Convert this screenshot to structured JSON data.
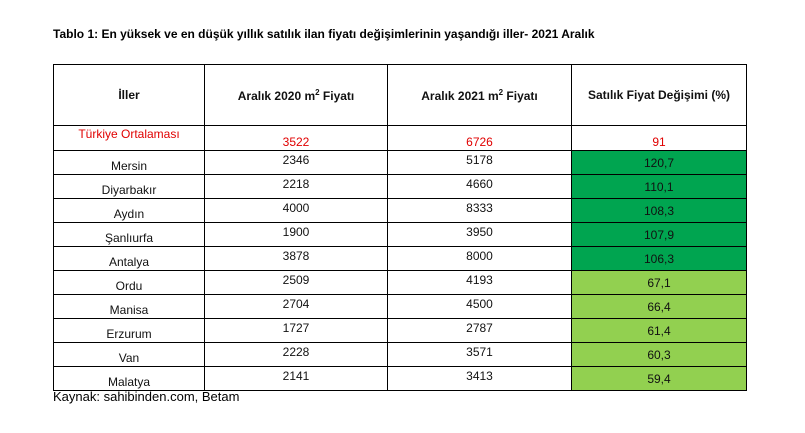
{
  "title": "Tablo 1: En yüksek ve en düşük yıllık satılık ilan fiyatı değişimlerinin yaşandığı iller- 2021 Aralık",
  "headers": {
    "city": "İller",
    "price2020": "Aralık 2020 m",
    "price2021": "Aralık 2021 m",
    "price_suffix": " Fiyatı",
    "sup": "2",
    "change": "Satılık Fiyat Değişimi (%)"
  },
  "average": {
    "city": "Türkiye Ortalaması",
    "p2020": "3522",
    "p2021": "6726",
    "change": "91"
  },
  "rows": [
    {
      "city": "Mersin",
      "p2020": "2346",
      "p2021": "5178",
      "change": "120,7"
    },
    {
      "city": "Diyarbakır",
      "p2020": "2218",
      "p2021": "4660",
      "change": "110,1"
    },
    {
      "city": "Aydın",
      "p2020": "4000",
      "p2021": "8333",
      "change": "108,3"
    },
    {
      "city": "Şanlıurfa",
      "p2020": "1900",
      "p2021": "3950",
      "change": "107,9"
    },
    {
      "city": "Antalya",
      "p2020": "3878",
      "p2021": "8000",
      "change": "106,3"
    },
    {
      "city": "Ordu",
      "p2020": "2509",
      "p2021": "4193",
      "change": "67,1"
    },
    {
      "city": "Manisa",
      "p2020": "2704",
      "p2021": "4500",
      "change": "66,4"
    },
    {
      "city": "Erzurum",
      "p2020": "1727",
      "p2021": "2787",
      "change": "61,4"
    },
    {
      "city": "Van",
      "p2020": "2228",
      "p2021": "3571",
      "change": "60,3"
    },
    {
      "city": "Malatya",
      "p2020": "2141",
      "p2021": "3413",
      "change": "59,4"
    }
  ],
  "colors": {
    "highest": "#00a550",
    "lowest": "#92d050",
    "average_text": "#e00000"
  },
  "source": "Kaynak: sahibinden.com, Betam"
}
